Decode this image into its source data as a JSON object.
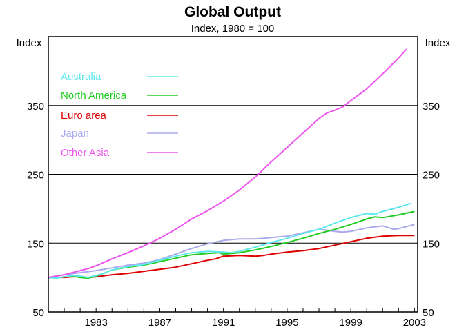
{
  "chart_data": {
    "type": "line",
    "title": "Global Output",
    "subtitle": "Index, 1980 = 100",
    "ylabel_left": "Index",
    "ylabel_right": "Index",
    "xlabel": "",
    "xlim": [
      1980.0,
      2003.2
    ],
    "ylim": [
      50,
      450
    ],
    "yticks": [
      50,
      150,
      250,
      350
    ],
    "xticks": [
      1983,
      1987,
      1991,
      1995,
      1999,
      2003
    ],
    "grid_lines_y": [
      150,
      250,
      350
    ],
    "legend_position": "top-left",
    "series": [
      {
        "name": "Australia",
        "color": "#5ee8ec",
        "x": [
          1980.0,
          1980.5,
          1981.0,
          1981.5,
          1982.0,
          1982.5,
          1983.0,
          1983.5,
          1984.0,
          1985.0,
          1986.0,
          1987.0,
          1988.0,
          1989.0,
          1990.0,
          1991.0,
          1991.5,
          1992.0,
          1993.0,
          1994.0,
          1995.0,
          1996.0,
          1997.0,
          1998.0,
          1999.0,
          2000.0,
          2000.5,
          2001.0,
          2002.0,
          2002.8
        ],
        "values": [
          100,
          99,
          101,
          103,
          102,
          100,
          103,
          106,
          111,
          116,
          119,
          125,
          131,
          136,
          138,
          137,
          136,
          138,
          144,
          151,
          157,
          164,
          170,
          179,
          187,
          193,
          192,
          196,
          202,
          208
        ]
      },
      {
        "name": "North America",
        "color": "#22cc22",
        "x": [
          1980.0,
          1980.5,
          1981.0,
          1981.5,
          1982.0,
          1982.5,
          1983.0,
          1983.5,
          1984.0,
          1985.0,
          1986.0,
          1987.0,
          1988.0,
          1989.0,
          1990.0,
          1990.7,
          1991.0,
          1992.0,
          1993.0,
          1994.0,
          1995.0,
          1996.0,
          1997.0,
          1998.0,
          1999.0,
          2000.0,
          2000.5,
          2001.0,
          2002.0,
          2003.0
        ],
        "values": [
          100,
          99,
          101,
          102,
          100,
          99,
          102,
          106,
          111,
          115,
          118,
          123,
          128,
          133,
          135,
          136,
          134,
          136,
          140,
          145,
          151,
          157,
          164,
          170,
          177,
          185,
          188,
          187,
          191,
          196
        ]
      },
      {
        "name": "Euro area",
        "color": "#dd0000",
        "x": [
          1980.0,
          1980.5,
          1981.0,
          1981.5,
          1982.0,
          1982.5,
          1983.0,
          1984.0,
          1985.0,
          1986.0,
          1987.0,
          1988.0,
          1989.0,
          1990.0,
          1990.5,
          1991.0,
          1992.0,
          1993.0,
          1993.5,
          1994.0,
          1995.0,
          1996.0,
          1997.0,
          1998.0,
          1999.0,
          2000.0,
          2001.0,
          2002.0,
          2003.0
        ],
        "values": [
          100,
          100,
          100,
          101,
          101,
          100,
          101,
          104,
          106,
          109,
          112,
          115,
          120,
          125,
          127,
          131,
          132,
          131,
          132,
          134,
          137,
          139,
          142,
          147,
          152,
          157,
          160,
          161,
          161
        ]
      },
      {
        "name": "Japan",
        "color": "#aaaaee",
        "x": [
          1980.0,
          1980.5,
          1981.0,
          1982.0,
          1983.0,
          1984.0,
          1985.0,
          1986.0,
          1987.0,
          1988.0,
          1989.0,
          1990.0,
          1991.0,
          1992.0,
          1993.0,
          1994.0,
          1995.0,
          1996.0,
          1997.0,
          1998.0,
          1998.5,
          1999.0,
          2000.0,
          2001.0,
          2001.7,
          2002.0,
          2003.0
        ],
        "values": [
          100,
          102,
          104,
          107,
          110,
          114,
          118,
          121,
          126,
          134,
          142,
          149,
          154,
          156,
          156,
          158,
          160,
          165,
          170,
          167,
          166,
          167,
          172,
          175,
          170,
          171,
          177
        ]
      },
      {
        "name": "Other Asia",
        "color": "#ee55ee",
        "x": [
          1980.0,
          1980.5,
          1981.0,
          1981.5,
          1982.0,
          1982.5,
          1983.0,
          1984.0,
          1985.0,
          1986.0,
          1987.0,
          1988.0,
          1989.0,
          1990.0,
          1991.0,
          1992.0,
          1993.0,
          1994.0,
          1995.0,
          1996.0,
          1997.0,
          1997.5,
          1998.0,
          1998.5,
          1999.0,
          2000.0,
          2001.0,
          2002.0,
          2002.5
        ],
        "values": [
          100,
          102,
          104,
          107,
          110,
          113,
          117,
          127,
          136,
          146,
          157,
          170,
          185,
          197,
          211,
          227,
          246,
          268,
          289,
          310,
          331,
          339,
          343,
          348,
          357,
          374,
          396,
          419,
          432
        ]
      }
    ]
  }
}
